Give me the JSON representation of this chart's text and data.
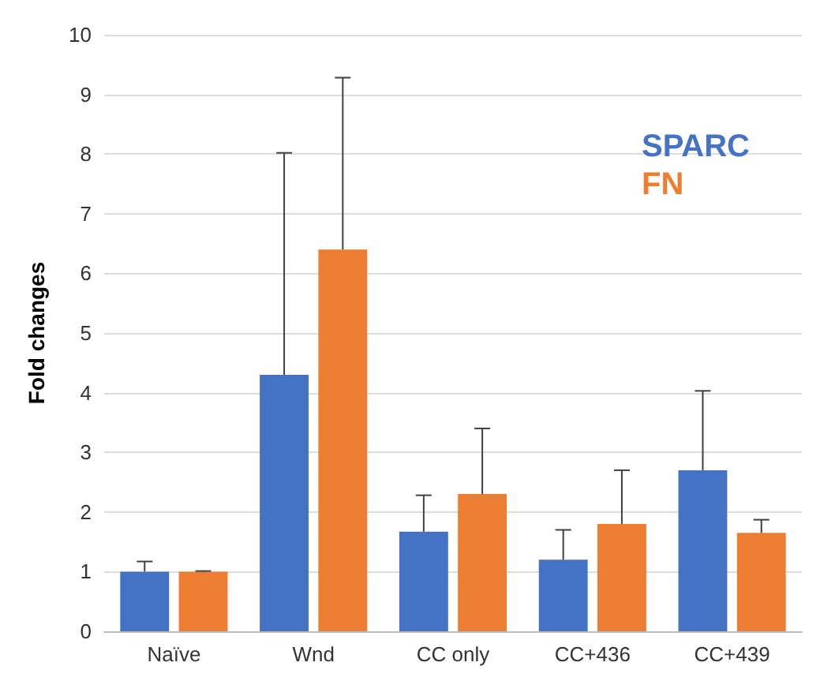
{
  "chart_data": {
    "type": "bar",
    "ylabel": "Fold changes",
    "categories": [
      "Naïve",
      "Wnd",
      "CC only",
      "CC+436",
      "CC+439"
    ],
    "series": [
      {
        "name": "SPARC",
        "color": "#4472c4",
        "values": [
          1.0,
          4.3,
          1.67,
          1.2,
          2.7
        ],
        "errors": [
          [
            1.0,
            1.17
          ],
          [
            4.3,
            8.02
          ],
          [
            1.67,
            2.28
          ],
          [
            1.2,
            1.7
          ],
          [
            2.7,
            4.03
          ]
        ]
      },
      {
        "name": "FN",
        "color": "#ed7d31",
        "values": [
          1.0,
          6.4,
          2.3,
          1.8,
          1.65
        ],
        "errors": [
          [
            1.0,
            1.01
          ],
          [
            6.4,
            9.28
          ],
          [
            2.3,
            3.4
          ],
          [
            1.8,
            2.7
          ],
          [
            1.65,
            1.87
          ]
        ]
      }
    ],
    "ylim": [
      0,
      10
    ],
    "yticks": [
      0,
      1,
      2,
      3,
      4,
      5,
      6,
      7,
      8,
      9,
      10
    ],
    "grid": "y",
    "legend": "top right"
  }
}
